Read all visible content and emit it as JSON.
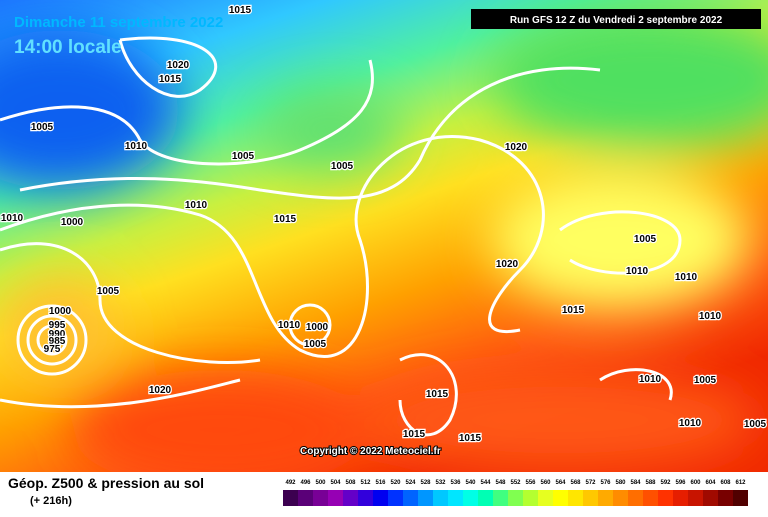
{
  "header": {
    "date": "Dimanche 11 septembre 2022",
    "time": "14:00 locale",
    "run": "Run GFS 12 Z du Vendredi 2 septembre 2022"
  },
  "isobars": [
    "1015",
    "1020",
    "1015",
    "1005",
    "1010",
    "1005",
    "1005",
    "1020",
    "1010",
    "1010",
    "1000",
    "1015",
    "1005",
    "1020",
    "1010",
    "1010",
    "1005",
    "1000",
    "995",
    "990",
    "985",
    "975",
    "1010",
    "1000",
    "1005",
    "1015",
    "1010",
    "1020",
    "1015",
    "1010",
    "1005",
    "1010",
    "1015",
    "1015",
    "1005"
  ],
  "copyright": "Copyright © 2022 Meteociel.fr",
  "footer": {
    "title": "Géop. Z500 & pression au sol",
    "lead": "(+ 216h)"
  },
  "scale": {
    "labels": [
      492,
      496,
      500,
      504,
      508,
      512,
      516,
      520,
      524,
      528,
      532,
      536,
      540,
      544,
      548,
      552,
      556,
      560,
      564,
      568,
      572,
      576,
      580,
      584,
      588,
      592,
      596,
      600,
      604,
      608,
      612
    ],
    "colors": [
      "#3c0050",
      "#5a0078",
      "#780096",
      "#9600b4",
      "#6400c8",
      "#3200dc",
      "#0000f0",
      "#0032ff",
      "#0064ff",
      "#0096ff",
      "#00c8ff",
      "#00e6ff",
      "#00ffe6",
      "#00ffb4",
      "#40ff80",
      "#80ff50",
      "#b4ff30",
      "#e6ff20",
      "#ffff00",
      "#ffe600",
      "#ffc800",
      "#ffaa00",
      "#ff8c00",
      "#ff6e00",
      "#ff5000",
      "#ff3200",
      "#e61e00",
      "#c81400",
      "#a00a00",
      "#780000",
      "#500000"
    ]
  }
}
